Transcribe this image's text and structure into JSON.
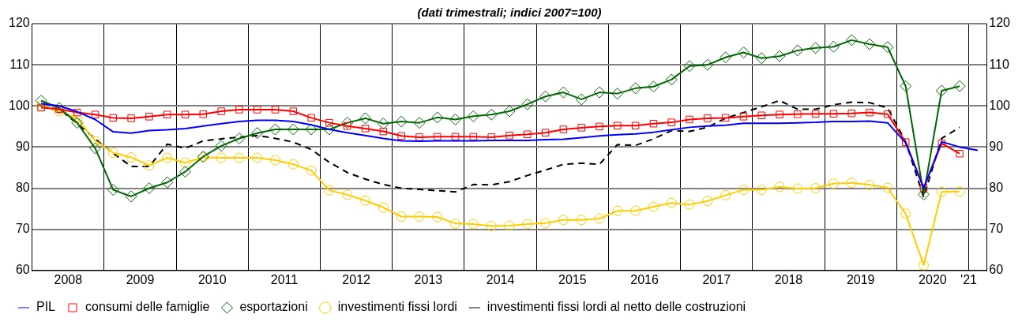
{
  "chart_data": {
    "type": "line",
    "title": "(dati trimestrali; indici 2007=100)",
    "x": [
      2008.125,
      2008.375,
      2008.625,
      2008.875,
      2009.125,
      2009.375,
      2009.625,
      2009.875,
      2010.125,
      2010.375,
      2010.625,
      2010.875,
      2011.125,
      2011.375,
      2011.625,
      2011.875,
      2012.125,
      2012.375,
      2012.625,
      2012.875,
      2013.125,
      2013.375,
      2013.625,
      2013.875,
      2014.125,
      2014.375,
      2014.625,
      2014.875,
      2015.125,
      2015.375,
      2015.625,
      2015.875,
      2016.125,
      2016.375,
      2016.625,
      2016.875,
      2017.125,
      2017.375,
      2017.625,
      2017.875,
      2018.125,
      2018.375,
      2018.625,
      2018.875,
      2019.125,
      2019.375,
      2019.625,
      2019.875,
      2020.125,
      2020.375,
      2020.625,
      2020.875,
      2021.125
    ],
    "series": [
      {
        "name": "PIL",
        "color": "#0000ff",
        "marker": "none",
        "line_style": "solid",
        "values": [
          100.6,
          100,
          98.6,
          96.7,
          93.7,
          93.4,
          94.0,
          94.2,
          94.5,
          95.1,
          95.7,
          96.2,
          96.5,
          96.5,
          96.2,
          95.4,
          94.3,
          93.5,
          92.8,
          92.1,
          91.5,
          91.4,
          91.5,
          91.5,
          91.5,
          91.6,
          91.6,
          91.6,
          91.8,
          91.9,
          92.3,
          92.7,
          93.0,
          93.2,
          93.6,
          94.2,
          94.8,
          95.1,
          95.3,
          95.8,
          95.8,
          95.8,
          95.9,
          96.0,
          96.2,
          96.2,
          96.3,
          95.9,
          91.0,
          80.0,
          91.3,
          90.0,
          89.2
        ]
      },
      {
        "name": "consumi delle famiglie",
        "color": "#ff0000",
        "marker": "square",
        "line_style": "solid",
        "values": [
          99.6,
          99.2,
          98.4,
          97.9,
          97.1,
          97.0,
          97.4,
          97.9,
          97.9,
          98.0,
          98.7,
          99.1,
          99.1,
          99.1,
          98.7,
          97.1,
          95.9,
          95.1,
          94.5,
          93.8,
          92.7,
          92.4,
          92.5,
          92.5,
          92.5,
          92.4,
          92.8,
          93.1,
          93.5,
          94.3,
          94.7,
          95.0,
          95.2,
          95.2,
          95.7,
          96.0,
          96.7,
          97.0,
          97.1,
          97.4,
          97.7,
          97.9,
          98.0,
          98.1,
          98.1,
          98.2,
          98.4,
          98.0,
          91.2,
          80.1,
          90.9,
          88.4,
          null
        ]
      },
      {
        "name": "esportazioni",
        "color": "#006600",
        "marker": "diamond",
        "line_style": "solid",
        "values": [
          101.3,
          99.5,
          95.9,
          89.7,
          79.6,
          78.0,
          80.0,
          81.4,
          84.0,
          87.7,
          90.3,
          92.1,
          93.4,
          94.3,
          94.3,
          94.3,
          94.3,
          95.9,
          97.0,
          95.7,
          96.2,
          95.9,
          97.2,
          96.7,
          97.5,
          97.9,
          98.7,
          100.4,
          102.3,
          103.3,
          101.6,
          103.3,
          103.0,
          104.3,
          104.7,
          106.4,
          109.7,
          110.0,
          111.8,
          113.0,
          111.6,
          112.1,
          113.5,
          114.1,
          114.4,
          116.0,
          115.0,
          114.3,
          104.8,
          78.5,
          103.7,
          104.8,
          null
        ]
      },
      {
        "name": "investimenti fissi lordi",
        "color": "#ffcc00",
        "marker": "circle",
        "line_style": "solid",
        "values": [
          100,
          98.7,
          97.0,
          91.5,
          88.6,
          87.5,
          85.5,
          87.4,
          86.2,
          87.5,
          87.4,
          87.4,
          87.4,
          86.8,
          85.8,
          84.3,
          79.5,
          78.4,
          77.0,
          75.3,
          73.1,
          73.1,
          73.0,
          71.4,
          71.3,
          70.8,
          70.9,
          71.3,
          71.5,
          72.3,
          72.3,
          72.6,
          74.5,
          74.5,
          75.5,
          76.4,
          76.0,
          76.9,
          78.3,
          79.6,
          79.6,
          80.3,
          79.9,
          80.0,
          81.1,
          81.3,
          80.8,
          80.1,
          73.8,
          61.3,
          79.1,
          79.2,
          null
        ]
      },
      {
        "name": "investimenti fissi lordi al netto delle costruzioni",
        "color": "#000000",
        "marker": "none",
        "line_style": "dashed",
        "values": [
          99.8,
          99.2,
          95.7,
          92.0,
          88.5,
          85.3,
          85.3,
          90.7,
          89.7,
          91.5,
          92.0,
          92.4,
          92.8,
          92.1,
          91.2,
          89.4,
          86.3,
          83.8,
          82.2,
          80.9,
          80.0,
          79.7,
          79.4,
          79.1,
          80.9,
          80.8,
          81.6,
          83.1,
          84.4,
          85.8,
          86.1,
          85.8,
          90.6,
          90.4,
          92.0,
          94.0,
          93.8,
          94.8,
          97.0,
          98.4,
          99.8,
          101.3,
          99.2,
          99.2,
          100.3,
          100.9,
          100.8,
          99.5,
          91.3,
          77.8,
          92.1,
          94.8,
          null
        ]
      }
    ],
    "xlim": [
      2008,
      2021.25
    ],
    "xticks": [
      {
        "value": 2008.5,
        "label": "2008"
      },
      {
        "value": 2009,
        "label": null
      },
      {
        "value": 2009.5,
        "label": "2009"
      },
      {
        "value": 2010,
        "label": null
      },
      {
        "value": 2010.5,
        "label": "2010"
      },
      {
        "value": 2011,
        "label": null
      },
      {
        "value": 2011.5,
        "label": "2011"
      },
      {
        "value": 2012,
        "label": null
      },
      {
        "value": 2012.5,
        "label": "2012"
      },
      {
        "value": 2013,
        "label": null
      },
      {
        "value": 2013.5,
        "label": "2013"
      },
      {
        "value": 2014,
        "label": null
      },
      {
        "value": 2014.5,
        "label": "2014"
      },
      {
        "value": 2015,
        "label": null
      },
      {
        "value": 2015.5,
        "label": "2015"
      },
      {
        "value": 2016,
        "label": null
      },
      {
        "value": 2016.5,
        "label": "2016"
      },
      {
        "value": 2017,
        "label": null
      },
      {
        "value": 2017.5,
        "label": "2017"
      },
      {
        "value": 2018,
        "label": null
      },
      {
        "value": 2018.5,
        "label": "2018"
      },
      {
        "value": 2019,
        "label": null
      },
      {
        "value": 2019.5,
        "label": "2019"
      },
      {
        "value": 2020,
        "label": null
      },
      {
        "value": 2020.5,
        "label": "2020"
      },
      {
        "value": 2021,
        "label": "'21"
      }
    ],
    "ylim": [
      60,
      120
    ],
    "yticks": [
      60,
      70,
      80,
      90,
      100,
      110,
      120
    ],
    "y2lim": [
      60,
      120
    ],
    "y2ticks": [
      60,
      70,
      80,
      90,
      100,
      110,
      120
    ],
    "grid": true,
    "legend": "bottom"
  }
}
